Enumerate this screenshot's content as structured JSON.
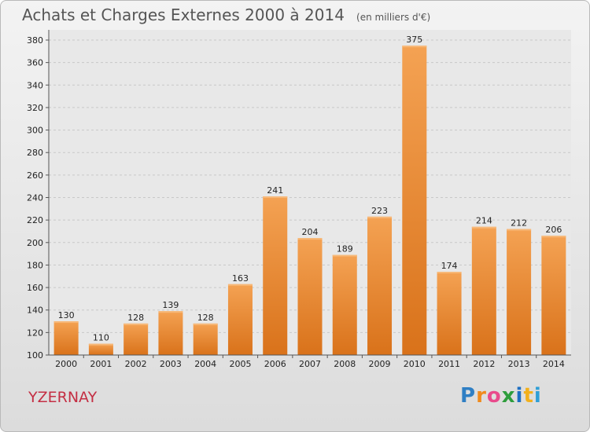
{
  "title": "Achats et Charges Externes 2000 à 2014",
  "unit": "(en milliers d'€)",
  "commune": "YZERNAY",
  "logo": {
    "letters": [
      "P",
      "r",
      "o",
      "x",
      "i",
      "t",
      "i"
    ],
    "colors": [
      "#2f7fc4",
      "#f08a1c",
      "#e94a8c",
      "#2e9d3c",
      "#1e6fc2",
      "#f2b01c",
      "#2f9fd6"
    ]
  },
  "colors": {
    "bar": "#f0923a",
    "bar_dark": "#d86f14",
    "title": "#555555",
    "commune": "#c42f44"
  },
  "chart_data": {
    "type": "bar",
    "title": "Achats et Charges Externes 2000 à 2014",
    "subtitle": "(en milliers d'€)",
    "categories": [
      "2000",
      "2001",
      "2002",
      "2003",
      "2004",
      "2005",
      "2006",
      "2007",
      "2008",
      "2009",
      "2010",
      "2011",
      "2012",
      "2013",
      "2014"
    ],
    "values": [
      130,
      110,
      128,
      139,
      128,
      163,
      241,
      204,
      189,
      223,
      375,
      174,
      214,
      212,
      206
    ],
    "ylim": [
      100,
      380
    ],
    "yticks": [
      100,
      120,
      140,
      160,
      180,
      200,
      220,
      240,
      260,
      280,
      300,
      320,
      340,
      360,
      380
    ],
    "grid": true
  }
}
